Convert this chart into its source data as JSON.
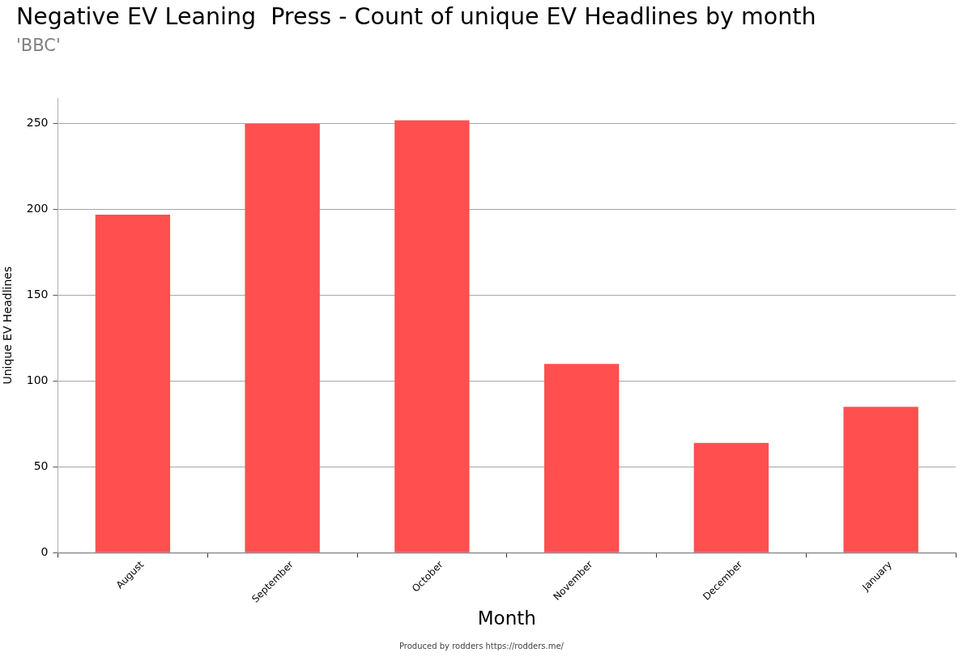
{
  "chart_data": {
    "type": "bar",
    "title": "Negative EV Leaning  Press - Count of unique EV Headlines by month",
    "subtitle": "'BBC'",
    "xlabel": "Month",
    "ylabel": "Unique EV Headlines",
    "annotations": [
      "Produced by rodders https://rodders.me/"
    ],
    "categories": [
      "August",
      "September",
      "October",
      "November",
      "December",
      "January"
    ],
    "values": [
      197,
      250,
      252,
      110,
      64,
      85
    ],
    "color": "#ff4f4f",
    "ylim": [
      0,
      265
    ],
    "yticks": [
      0,
      50,
      100,
      150,
      200,
      250
    ],
    "grid": "y"
  }
}
